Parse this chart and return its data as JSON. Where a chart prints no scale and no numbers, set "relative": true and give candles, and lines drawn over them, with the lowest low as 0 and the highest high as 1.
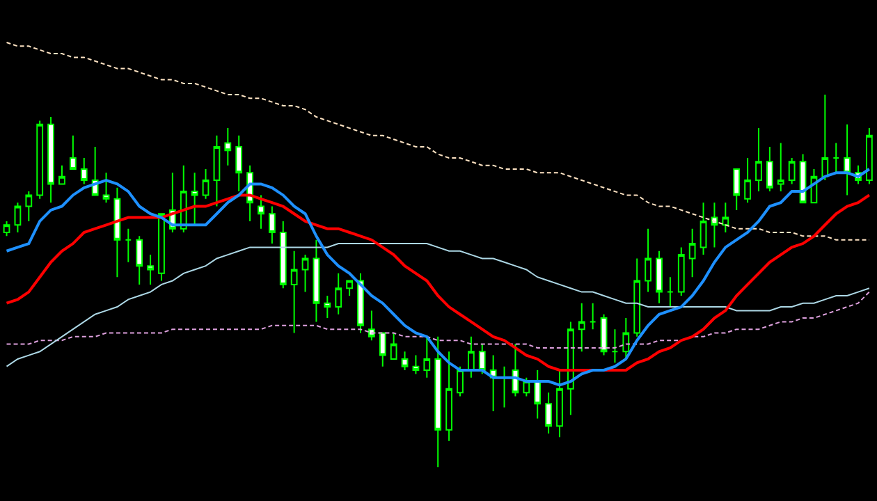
{
  "chart_data": {
    "type": "candlestick",
    "relative": true,
    "grid": false,
    "categories": [
      null,
      null,
      null,
      null,
      null,
      null,
      null,
      null,
      null,
      null,
      null,
      null,
      null,
      null,
      null,
      null,
      null,
      null,
      null,
      null,
      null,
      null,
      null,
      null,
      null,
      null,
      null,
      null,
      null,
      null,
      null,
      null,
      null,
      null,
      null,
      null,
      null,
      null,
      null,
      null,
      null,
      null,
      null,
      null,
      null,
      null,
      null,
      null,
      null,
      null,
      null,
      null,
      null,
      null,
      null,
      null,
      null,
      null,
      null,
      null,
      null,
      null,
      null,
      null,
      null,
      null,
      null,
      null,
      null,
      null,
      null,
      null,
      null,
      null,
      null,
      null,
      null,
      null,
      null
    ],
    "series": [
      {
        "type": "line",
        "color": "#dda0dd",
        "line_style": "dashed",
        "values": [
          0.33,
          0.33,
          0.33,
          0.34,
          0.34,
          0.34,
          0.35,
          0.35,
          0.35,
          0.36,
          0.36,
          0.36,
          0.36,
          0.36,
          0.36,
          0.37,
          0.37,
          0.37,
          0.37,
          0.37,
          0.37,
          0.37,
          0.37,
          0.37,
          0.38,
          0.38,
          0.38,
          0.38,
          0.38,
          0.37,
          0.37,
          0.37,
          0.37,
          0.36,
          0.36,
          0.36,
          0.35,
          0.35,
          0.35,
          0.34,
          0.34,
          0.34,
          0.33,
          0.33,
          0.33,
          0.33,
          0.33,
          0.33,
          0.32,
          0.32,
          0.32,
          0.32,
          0.32,
          0.32,
          0.32,
          0.32,
          0.33,
          0.33,
          0.33,
          0.34,
          0.34,
          0.34,
          0.35,
          0.35,
          0.36,
          0.36,
          0.37,
          0.37,
          0.37,
          0.38,
          0.39,
          0.39,
          0.4,
          0.4,
          0.41,
          0.42,
          0.43,
          0.44,
          0.47
        ]
      },
      {
        "type": "line",
        "color": "#ffe4c4",
        "line_style": "dashed",
        "values": [
          1.14,
          1.13,
          1.13,
          1.12,
          1.11,
          1.11,
          1.1,
          1.1,
          1.09,
          1.08,
          1.07,
          1.07,
          1.06,
          1.05,
          1.04,
          1.04,
          1.03,
          1.03,
          1.02,
          1.01,
          1.0,
          1.0,
          0.99,
          0.99,
          0.98,
          0.97,
          0.97,
          0.96,
          0.94,
          0.93,
          0.92,
          0.91,
          0.9,
          0.89,
          0.89,
          0.88,
          0.87,
          0.86,
          0.86,
          0.84,
          0.83,
          0.83,
          0.82,
          0.81,
          0.81,
          0.8,
          0.8,
          0.8,
          0.79,
          0.79,
          0.79,
          0.78,
          0.77,
          0.76,
          0.75,
          0.74,
          0.73,
          0.73,
          0.71,
          0.7,
          0.7,
          0.69,
          0.68,
          0.67,
          0.66,
          0.65,
          0.64,
          0.64,
          0.64,
          0.63,
          0.63,
          0.63,
          0.62,
          0.62,
          0.62,
          0.61,
          0.61,
          0.61,
          0.61
        ]
      },
      {
        "type": "line",
        "color": "#add8e6",
        "line_style": "solid",
        "values": [
          0.27,
          0.29,
          0.3,
          0.31,
          0.33,
          0.35,
          0.37,
          0.39,
          0.41,
          0.42,
          0.43,
          0.45,
          0.46,
          0.47,
          0.49,
          0.5,
          0.52,
          0.53,
          0.54,
          0.56,
          0.57,
          0.58,
          0.59,
          0.59,
          0.59,
          0.59,
          0.59,
          0.59,
          0.59,
          0.59,
          0.6,
          0.6,
          0.6,
          0.6,
          0.6,
          0.6,
          0.6,
          0.6,
          0.6,
          0.59,
          0.58,
          0.58,
          0.57,
          0.56,
          0.56,
          0.55,
          0.54,
          0.53,
          0.51,
          0.5,
          0.49,
          0.48,
          0.47,
          0.47,
          0.46,
          0.45,
          0.44,
          0.44,
          0.43,
          0.43,
          0.43,
          0.43,
          0.43,
          0.43,
          0.43,
          0.43,
          0.42,
          0.42,
          0.42,
          0.42,
          0.43,
          0.43,
          0.44,
          0.44,
          0.45,
          0.46,
          0.46,
          0.47,
          0.48
        ]
      },
      {
        "type": "line",
        "color": "#ff0000",
        "line_style": "solid",
        "values": [
          0.44,
          0.45,
          0.47,
          0.51,
          0.55,
          0.58,
          0.6,
          0.63,
          0.64,
          0.65,
          0.66,
          0.67,
          0.67,
          0.67,
          0.67,
          0.68,
          0.69,
          0.7,
          0.7,
          0.71,
          0.72,
          0.73,
          0.73,
          0.72,
          0.71,
          0.7,
          0.68,
          0.66,
          0.65,
          0.64,
          0.64,
          0.63,
          0.62,
          0.61,
          0.59,
          0.57,
          0.54,
          0.52,
          0.5,
          0.46,
          0.43,
          0.41,
          0.39,
          0.37,
          0.35,
          0.34,
          0.32,
          0.3,
          0.29,
          0.27,
          0.26,
          0.26,
          0.26,
          0.26,
          0.26,
          0.26,
          0.26,
          0.28,
          0.29,
          0.31,
          0.32,
          0.34,
          0.35,
          0.37,
          0.4,
          0.42,
          0.46,
          0.49,
          0.52,
          0.55,
          0.57,
          0.59,
          0.6,
          0.62,
          0.65,
          0.68,
          0.7,
          0.71,
          0.73
        ]
      },
      {
        "type": "line",
        "color": "#1e90ff",
        "line_style": "solid",
        "values": [
          0.58,
          0.59,
          0.6,
          0.66,
          0.69,
          0.7,
          0.73,
          0.75,
          0.76,
          0.77,
          0.76,
          0.74,
          0.7,
          0.68,
          0.67,
          0.65,
          0.65,
          0.65,
          0.65,
          0.68,
          0.71,
          0.73,
          0.76,
          0.76,
          0.75,
          0.73,
          0.7,
          0.68,
          0.62,
          0.57,
          0.54,
          0.52,
          0.49,
          0.46,
          0.44,
          0.41,
          0.38,
          0.36,
          0.35,
          0.31,
          0.28,
          0.26,
          0.26,
          0.26,
          0.24,
          0.24,
          0.24,
          0.23,
          0.23,
          0.23,
          0.22,
          0.23,
          0.25,
          0.26,
          0.26,
          0.27,
          0.29,
          0.34,
          0.38,
          0.41,
          0.42,
          0.43,
          0.46,
          0.5,
          0.55,
          0.59,
          0.61,
          0.63,
          0.66,
          0.7,
          0.71,
          0.74,
          0.74,
          0.76,
          0.78,
          0.79,
          0.79,
          0.78,
          0.8
        ]
      },
      {
        "color": "#00ff00",
        "ohlc": [
          [
            0.63,
            0.66,
            0.62,
            0.65
          ],
          [
            0.65,
            0.71,
            0.63,
            0.7
          ],
          [
            0.7,
            0.74,
            0.66,
            0.73
          ],
          [
            0.73,
            0.93,
            0.72,
            0.92
          ],
          [
            0.92,
            0.94,
            0.71,
            0.76
          ],
          [
            0.76,
            0.81,
            0.76,
            0.78
          ],
          [
            0.83,
            0.89,
            0.8,
            0.8
          ],
          [
            0.8,
            0.83,
            0.76,
            0.77
          ],
          [
            0.77,
            0.86,
            0.73,
            0.73
          ],
          [
            0.73,
            0.79,
            0.71,
            0.72
          ],
          [
            0.72,
            0.75,
            0.51,
            0.61
          ],
          [
            0.61,
            0.64,
            0.55,
            0.61
          ],
          [
            0.61,
            0.62,
            0.49,
            0.54
          ],
          [
            0.54,
            0.57,
            0.49,
            0.53
          ],
          [
            0.52,
            0.68,
            0.5,
            0.68
          ],
          [
            0.69,
            0.79,
            0.63,
            0.64
          ],
          [
            0.64,
            0.81,
            0.63,
            0.74
          ],
          [
            0.74,
            0.79,
            0.65,
            0.73
          ],
          [
            0.73,
            0.8,
            0.72,
            0.77
          ],
          [
            0.77,
            0.89,
            0.7,
            0.86
          ],
          [
            0.87,
            0.91,
            0.81,
            0.85
          ],
          [
            0.86,
            0.89,
            0.74,
            0.79
          ],
          [
            0.79,
            0.81,
            0.66,
            0.71
          ],
          [
            0.7,
            0.73,
            0.64,
            0.68
          ],
          [
            0.68,
            0.7,
            0.6,
            0.63
          ],
          [
            0.63,
            0.66,
            0.48,
            0.49
          ],
          [
            0.49,
            0.58,
            0.36,
            0.53
          ],
          [
            0.53,
            0.57,
            0.47,
            0.56
          ],
          [
            0.56,
            0.61,
            0.39,
            0.44
          ],
          [
            0.44,
            0.46,
            0.4,
            0.43
          ],
          [
            0.43,
            0.52,
            0.41,
            0.48
          ],
          [
            0.48,
            0.5,
            0.46,
            0.5
          ],
          [
            0.5,
            0.52,
            0.36,
            0.38
          ],
          [
            0.37,
            0.42,
            0.34,
            0.35
          ],
          [
            0.36,
            0.36,
            0.27,
            0.3
          ],
          [
            0.29,
            0.36,
            0.29,
            0.33
          ],
          [
            0.29,
            0.31,
            0.26,
            0.27
          ],
          [
            0.27,
            0.3,
            0.25,
            0.26
          ],
          [
            0.26,
            0.35,
            0.24,
            0.29
          ],
          [
            0.29,
            0.35,
            0.0,
            0.1
          ],
          [
            0.1,
            0.31,
            0.07,
            0.21
          ],
          [
            0.2,
            0.27,
            0.19,
            0.26
          ],
          [
            0.26,
            0.35,
            0.24,
            0.31
          ],
          [
            0.31,
            0.33,
            0.25,
            0.26
          ],
          [
            0.26,
            0.3,
            0.15,
            0.24
          ],
          [
            0.24,
            0.27,
            0.16,
            0.24
          ],
          [
            0.26,
            0.33,
            0.19,
            0.2
          ],
          [
            0.2,
            0.24,
            0.19,
            0.23
          ],
          [
            0.23,
            0.26,
            0.13,
            0.17
          ],
          [
            0.17,
            0.2,
            0.09,
            0.11
          ],
          [
            0.11,
            0.26,
            0.08,
            0.21
          ],
          [
            0.21,
            0.39,
            0.14,
            0.37
          ],
          [
            0.37,
            0.44,
            0.31,
            0.39
          ],
          [
            0.39,
            0.44,
            0.37,
            0.39
          ],
          [
            0.4,
            0.41,
            0.3,
            0.31
          ],
          [
            0.31,
            0.37,
            0.28,
            0.31
          ],
          [
            0.31,
            0.4,
            0.29,
            0.36
          ],
          [
            0.36,
            0.56,
            0.35,
            0.5
          ],
          [
            0.5,
            0.64,
            0.47,
            0.56
          ],
          [
            0.56,
            0.58,
            0.44,
            0.47
          ],
          [
            0.47,
            0.51,
            0.43,
            0.47
          ],
          [
            0.47,
            0.59,
            0.46,
            0.57
          ],
          [
            0.56,
            0.64,
            0.51,
            0.6
          ],
          [
            0.59,
            0.71,
            0.57,
            0.66
          ],
          [
            0.67,
            0.71,
            0.59,
            0.65
          ],
          [
            0.65,
            0.71,
            0.63,
            0.67
          ],
          [
            0.8,
            0.8,
            0.69,
            0.73
          ],
          [
            0.72,
            0.83,
            0.71,
            0.77
          ],
          [
            0.77,
            0.91,
            0.74,
            0.82
          ],
          [
            0.82,
            0.86,
            0.74,
            0.75
          ],
          [
            0.76,
            0.87,
            0.74,
            0.77
          ],
          [
            0.77,
            0.83,
            0.76,
            0.82
          ],
          [
            0.82,
            0.84,
            0.71,
            0.71
          ],
          [
            0.71,
            0.8,
            0.71,
            0.78
          ],
          [
            0.78,
            1.0,
            0.77,
            0.83
          ],
          [
            0.83,
            0.87,
            0.79,
            0.83
          ],
          [
            0.83,
            0.92,
            0.73,
            0.79
          ],
          [
            0.79,
            0.81,
            0.76,
            0.77
          ],
          [
            0.77,
            0.91,
            0.76,
            0.89
          ]
        ]
      }
    ]
  }
}
